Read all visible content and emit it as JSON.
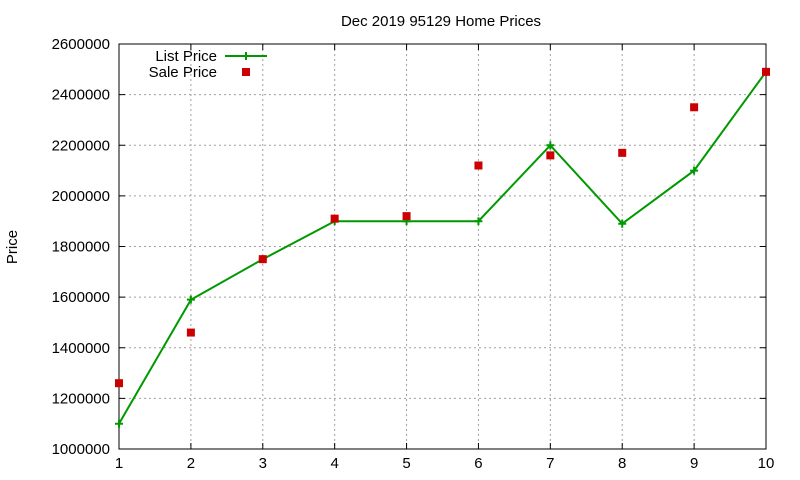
{
  "chart_data": {
    "type": "line",
    "title": "Dec 2019 95129 Home Prices",
    "xlabel": "",
    "ylabel": "Price",
    "xlim": [
      1,
      10
    ],
    "ylim": [
      1000000,
      2600000
    ],
    "xticks": [
      "1",
      "2",
      "3",
      "4",
      "5",
      "6",
      "7",
      "8",
      "9",
      "10"
    ],
    "yticks": [
      "1000000",
      "1200000",
      "1400000",
      "1600000",
      "1800000",
      "2000000",
      "2200000",
      "2400000",
      "2600000"
    ],
    "grid": true,
    "legend_position": "top-left",
    "x": [
      1,
      2,
      3,
      4,
      5,
      6,
      7,
      8,
      9,
      10
    ],
    "series": [
      {
        "name": "List Price",
        "style": "line+plus-marker",
        "color": "#009900",
        "values": [
          1100000,
          1590000,
          1750000,
          1900000,
          1900000,
          1900000,
          2200000,
          1890000,
          2100000,
          2490000
        ]
      },
      {
        "name": "Sale Price",
        "style": "square-marker",
        "color": "#cc0000",
        "values": [
          1260000,
          1460000,
          1750000,
          1910000,
          1920000,
          2120000,
          2160000,
          2170000,
          2350000,
          2490000
        ]
      }
    ]
  }
}
